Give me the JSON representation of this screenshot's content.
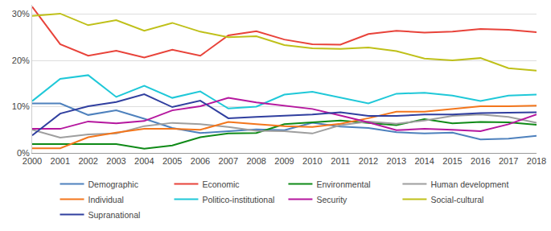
{
  "chart_data": {
    "type": "line",
    "x": [
      2000,
      2001,
      2002,
      2003,
      2004,
      2005,
      2006,
      2007,
      2008,
      2009,
      2010,
      2011,
      2012,
      2013,
      2014,
      2015,
      2016,
      2017,
      2018
    ],
    "xlim": [
      2000,
      2018
    ],
    "xticks": [
      2000,
      2001,
      2002,
      2003,
      2004,
      2005,
      2006,
      2007,
      2008,
      2009,
      2010,
      2011,
      2012,
      2013,
      2014,
      2015,
      2016,
      2017,
      2018
    ],
    "ylim": [
      0,
      32
    ],
    "yticks": [
      {
        "value": 0,
        "label": "0%"
      },
      {
        "value": 10,
        "label": "10%"
      },
      {
        "value": 20,
        "label": "20%"
      },
      {
        "value": 30,
        "label": "30%"
      }
    ],
    "grid": true,
    "legend": "bottom",
    "series": [
      {
        "name": "Demographic",
        "color": "#4e81bd",
        "values": [
          10.7,
          10.7,
          8.2,
          9.2,
          7.4,
          5.4,
          4.3,
          4.7,
          5.1,
          4.9,
          6.5,
          5.7,
          5.4,
          4.5,
          4.2,
          4.4,
          2.9,
          3.1,
          3.7
        ]
      },
      {
        "name": "Economic",
        "color": "#e8433a",
        "values": [
          31.6,
          23.5,
          21,
          22.1,
          20.6,
          22.3,
          21,
          25.4,
          26.3,
          24.5,
          23.5,
          23.4,
          25.7,
          26.4,
          26,
          26.2,
          26.8,
          26.6,
          26.1
        ]
      },
      {
        "name": "Environmental",
        "color": "#0f8a17",
        "values": [
          1.9,
          1.9,
          1.9,
          1.9,
          0.9,
          1.6,
          3.4,
          4.2,
          4.3,
          6.2,
          6.6,
          7,
          6.5,
          6,
          7.3,
          6.4,
          6.7,
          6.6,
          6.1
        ]
      },
      {
        "name": "Human development",
        "color": "#9e9e9e",
        "values": [
          5,
          3.3,
          4,
          4.2,
          5.8,
          6.5,
          6.2,
          5.6,
          4.8,
          4.7,
          4.2,
          6,
          6.8,
          6.3,
          7,
          8,
          8.3,
          7.8,
          6.5
        ]
      },
      {
        "name": "Individual",
        "color": "#f3761c",
        "values": [
          1,
          1,
          3.4,
          4.4,
          5.2,
          5.2,
          5,
          6.7,
          6.2,
          5.8,
          5.6,
          6.3,
          7.5,
          8.9,
          8.9,
          9.5,
          10.1,
          10.1,
          10.2
        ]
      },
      {
        "name": "Politico-institutional",
        "color": "#1fc8d8",
        "values": [
          11.2,
          16,
          16.8,
          12.1,
          14.5,
          11.9,
          13.3,
          9.6,
          10,
          12.6,
          13.2,
          11.9,
          10.7,
          12.8,
          13,
          12.4,
          11.2,
          12.4,
          12.6
        ]
      },
      {
        "name": "Security",
        "color": "#b5179e",
        "values": [
          5.2,
          5.2,
          6.8,
          6.4,
          6.9,
          9.2,
          10.1,
          11.9,
          10.9,
          10.2,
          9.5,
          8.1,
          6.6,
          4.9,
          5.2,
          5,
          4.7,
          6.2,
          8.3
        ]
      },
      {
        "name": "Social-cultural",
        "color": "#bfc019",
        "values": [
          29.6,
          30.1,
          27.6,
          28.7,
          26.4,
          28.1,
          26.2,
          25,
          25.2,
          23.3,
          22.6,
          22.5,
          22.8,
          22,
          20.4,
          20,
          20.5,
          18.3,
          17.8
        ]
      },
      {
        "name": "Supranational",
        "color": "#303f9f",
        "values": [
          3.8,
          8.5,
          10.1,
          11,
          12.7,
          9.9,
          11.3,
          7.5,
          7.8,
          8.1,
          8.3,
          8.8,
          8,
          8,
          8.3,
          8.3,
          8.6,
          8.7,
          8.8
        ]
      }
    ]
  }
}
